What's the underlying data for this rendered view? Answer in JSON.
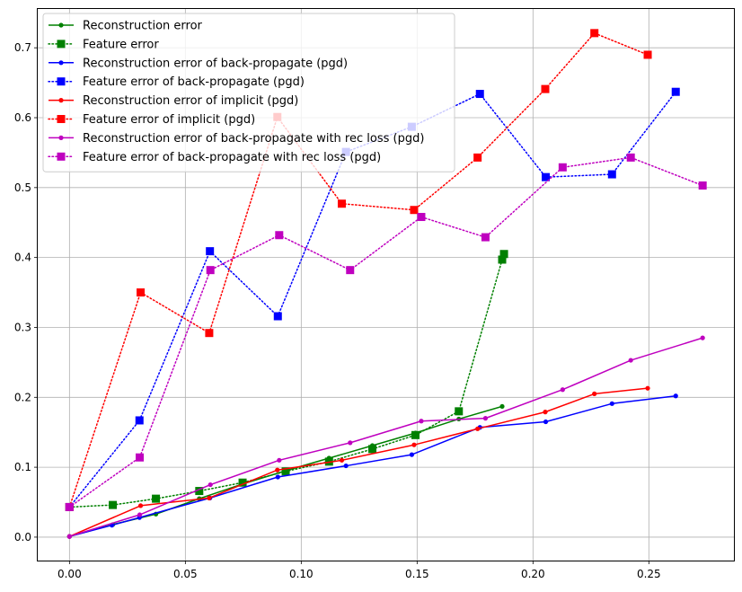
{
  "chart_data": {
    "type": "line",
    "title": "",
    "xlabel": "",
    "ylabel": "",
    "xlim": [
      -0.0137,
      0.2867
    ],
    "ylim": [
      -0.0335,
      0.7555
    ],
    "xticks": [
      0.0,
      0.05,
      0.1,
      0.15,
      0.2,
      0.25
    ],
    "xtick_labels": [
      "0.00",
      "0.05",
      "0.10",
      "0.15",
      "0.20",
      "0.25"
    ],
    "yticks": [
      0.0,
      0.1,
      0.2,
      0.3,
      0.4,
      0.5,
      0.6,
      0.7
    ],
    "ytick_labels": [
      "0.0",
      "0.1",
      "0.2",
      "0.3",
      "0.4",
      "0.5",
      "0.6",
      "0.7"
    ],
    "grid": true,
    "legend_position": "top-left",
    "series": [
      {
        "name": "Reconstruction error",
        "color": "#008000",
        "style": "solid",
        "marker": "dot",
        "points": [
          [
            0.0,
            0.001
          ],
          [
            0.0187,
            0.018
          ],
          [
            0.0373,
            0.033
          ],
          [
            0.056,
            0.055
          ],
          [
            0.0747,
            0.076
          ],
          [
            0.0933,
            0.095
          ],
          [
            0.112,
            0.113
          ],
          [
            0.1307,
            0.131
          ],
          [
            0.1493,
            0.149
          ],
          [
            0.168,
            0.169
          ],
          [
            0.1867,
            0.187
          ]
        ]
      },
      {
        "name": "Feature error",
        "color": "#008000",
        "style": "dotted",
        "marker": "square",
        "points": [
          [
            0.0,
            0.043
          ],
          [
            0.0187,
            0.046
          ],
          [
            0.0373,
            0.055
          ],
          [
            0.056,
            0.066
          ],
          [
            0.0747,
            0.078
          ],
          [
            0.0933,
            0.094
          ],
          [
            0.112,
            0.108
          ],
          [
            0.1307,
            0.126
          ],
          [
            0.1493,
            0.146
          ],
          [
            0.168,
            0.18
          ],
          [
            0.1867,
            0.397
          ],
          [
            0.1875,
            0.405
          ]
        ]
      },
      {
        "name": "Reconstruction error of back-propagate (pgd)",
        "color": "#0000ff",
        "style": "solid",
        "marker": "dot",
        "points": [
          [
            0.0,
            0.001
          ],
          [
            0.0183,
            0.017
          ],
          [
            0.0302,
            0.028
          ],
          [
            0.0606,
            0.056
          ],
          [
            0.0899,
            0.086
          ],
          [
            0.1193,
            0.102
          ],
          [
            0.1477,
            0.118
          ],
          [
            0.1771,
            0.157
          ],
          [
            0.2055,
            0.165
          ],
          [
            0.2341,
            0.191
          ],
          [
            0.2616,
            0.202
          ]
        ]
      },
      {
        "name": "Feature error of back-propagate (pgd)",
        "color": "#0000ff",
        "style": "dotted",
        "marker": "square",
        "points": [
          [
            0.0,
            0.043
          ],
          [
            0.0302,
            0.167
          ],
          [
            0.0606,
            0.409
          ],
          [
            0.0899,
            0.316
          ],
          [
            0.1193,
            0.551
          ],
          [
            0.1477,
            0.587
          ],
          [
            0.1771,
            0.634
          ],
          [
            0.2055,
            0.515
          ],
          [
            0.2341,
            0.519
          ],
          [
            0.2616,
            0.637
          ]
        ]
      },
      {
        "name": "Reconstruction error of implicit (pgd)",
        "color": "#ff0000",
        "style": "solid",
        "marker": "dot",
        "points": [
          [
            0.0,
            0.001
          ],
          [
            0.0307,
            0.045
          ],
          [
            0.0603,
            0.056
          ],
          [
            0.0897,
            0.096
          ],
          [
            0.1175,
            0.11
          ],
          [
            0.1487,
            0.132
          ],
          [
            0.1761,
            0.155
          ],
          [
            0.2053,
            0.179
          ],
          [
            0.2265,
            0.205
          ],
          [
            0.2495,
            0.213
          ]
        ]
      },
      {
        "name": "Feature error of implicit (pgd)",
        "color": "#ff0000",
        "style": "dotted",
        "marker": "square",
        "points": [
          [
            0.0,
            0.043
          ],
          [
            0.0307,
            0.35
          ],
          [
            0.0603,
            0.292
          ],
          [
            0.0897,
            0.601
          ],
          [
            0.1175,
            0.477
          ],
          [
            0.1487,
            0.468
          ],
          [
            0.1761,
            0.543
          ],
          [
            0.2053,
            0.641
          ],
          [
            0.2265,
            0.721
          ],
          [
            0.2495,
            0.69
          ]
        ]
      },
      {
        "name": "Reconstruction error of back-propagate with rec loss (pgd)",
        "color": "#bf00bf",
        "style": "solid",
        "marker": "dot",
        "points": [
          [
            0.0,
            0.001
          ],
          [
            0.0303,
            0.032
          ],
          [
            0.0608,
            0.075
          ],
          [
            0.0905,
            0.11
          ],
          [
            0.1211,
            0.135
          ],
          [
            0.1518,
            0.166
          ],
          [
            0.1795,
            0.17
          ],
          [
            0.2128,
            0.211
          ],
          [
            0.2422,
            0.253
          ],
          [
            0.2732,
            0.285
          ]
        ]
      },
      {
        "name": "Feature error of back-propagate with rec loss (pgd)",
        "color": "#bf00bf",
        "style": "dotted",
        "marker": "square",
        "points": [
          [
            0.0,
            0.043
          ],
          [
            0.0303,
            0.114
          ],
          [
            0.0608,
            0.382
          ],
          [
            0.0905,
            0.432
          ],
          [
            0.1211,
            0.382
          ],
          [
            0.1518,
            0.458
          ],
          [
            0.1795,
            0.429
          ],
          [
            0.2128,
            0.529
          ],
          [
            0.2422,
            0.543
          ],
          [
            0.2732,
            0.503
          ]
        ]
      }
    ]
  }
}
